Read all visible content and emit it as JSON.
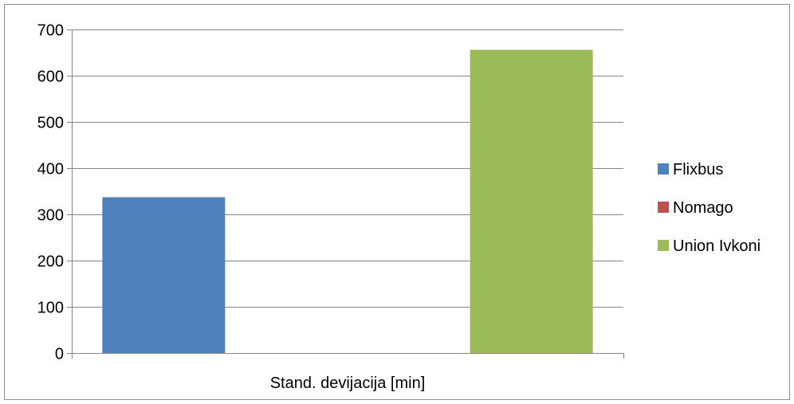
{
  "chart_data": {
    "type": "bar",
    "title": "",
    "xlabel": "",
    "ylabel": "",
    "categories": [
      "Stand. devijacija [min]"
    ],
    "series": [
      {
        "name": "Flixbus",
        "values": [
          337
        ],
        "color": "#4f81bd"
      },
      {
        "name": "Nomago",
        "values": [
          0
        ],
        "color": "#c0504d"
      },
      {
        "name": "Union Ivkoni",
        "values": [
          656
        ],
        "color": "#9bbb59"
      }
    ],
    "ylim": [
      0,
      700
    ],
    "yticks": [
      0,
      100,
      200,
      300,
      400,
      500,
      600,
      700
    ],
    "grid": true,
    "legend_position": "right"
  }
}
